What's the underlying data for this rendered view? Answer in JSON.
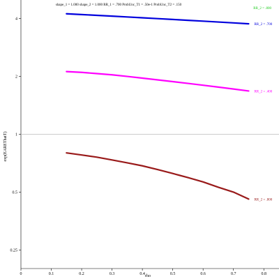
{
  "chart_data": {
    "type": "line",
    "title": "shape_1 = 1.000  shape_2 = 1.000  RR_1 = .700  ProbUnc_T1 = .50e-1  ProbUnc_T2 = .150",
    "xlabel": "rho",
    "ylabel": "exp(EAREThatT)",
    "xlim": [
      0,
      0.85
    ],
    "ylim": [
      0.2,
      5.0
    ],
    "y_scale": "log",
    "x_ticks": [
      "0",
      "0.1",
      "0.2",
      "0.3",
      "0.4",
      "0.5",
      "0.6",
      "0.7",
      "0.8"
    ],
    "y_ticks": [
      "0.25",
      "0.5",
      "1",
      "2",
      "4"
    ],
    "reference_line": {
      "y": 1
    },
    "series": [
      {
        "name": "RR_2 = .700",
        "color": "#0000dd",
        "x": [
          0.15,
          0.2,
          0.25,
          0.3,
          0.35,
          0.4,
          0.45,
          0.5,
          0.55,
          0.6,
          0.65,
          0.7,
          0.75
        ],
        "y": [
          4.24,
          4.2,
          4.16,
          4.12,
          4.08,
          4.04,
          4.0,
          3.96,
          3.92,
          3.88,
          3.84,
          3.8,
          3.76
        ]
      },
      {
        "name": "RR_2 = .400",
        "color": "#ff00ff",
        "x": [
          0.15,
          0.2,
          0.25,
          0.3,
          0.35,
          0.4,
          0.45,
          0.5,
          0.55,
          0.6,
          0.65,
          0.7,
          0.75
        ],
        "y": [
          2.12,
          2.1,
          2.07,
          2.04,
          2.0,
          1.96,
          1.92,
          1.88,
          1.84,
          1.8,
          1.76,
          1.72,
          1.68
        ]
      },
      {
        "name": "RR_2 = .800",
        "color": "#991a1a",
        "x": [
          0.15,
          0.2,
          0.25,
          0.3,
          0.35,
          0.4,
          0.45,
          0.5,
          0.55,
          0.6,
          0.65,
          0.7,
          0.75
        ],
        "y": [
          0.8,
          0.78,
          0.76,
          0.735,
          0.71,
          0.685,
          0.655,
          0.625,
          0.595,
          0.565,
          0.53,
          0.5,
          0.46
        ]
      }
    ],
    "extra_legend": {
      "label": "RR_2 = .800",
      "color": "#22cc22"
    }
  }
}
